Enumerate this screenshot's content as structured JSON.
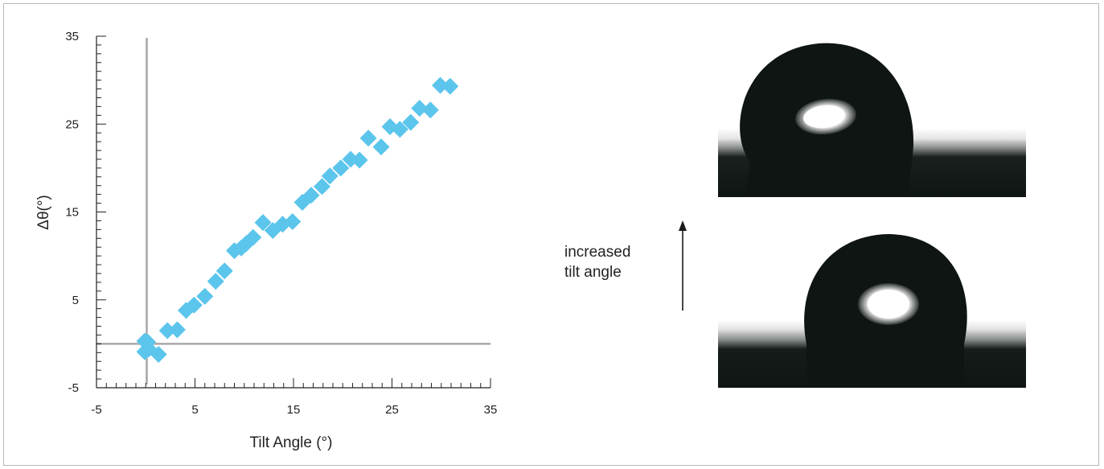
{
  "chart_data": {
    "type": "scatter",
    "title": "",
    "xlabel": "Tilt Angle (°)",
    "ylabel": "Δθ(°)",
    "xlim": [
      -5,
      35
    ],
    "ylim": [
      -5,
      35
    ],
    "xticks": [
      -5,
      5,
      15,
      25,
      35
    ],
    "yticks": [
      -5,
      5,
      15,
      25,
      35
    ],
    "x_tick_labels": [
      "-5",
      "5",
      "15",
      "25",
      "35"
    ],
    "y_tick_labels": [
      "-5",
      "5",
      "15",
      "25",
      "35"
    ],
    "grid": false,
    "legend": "none",
    "reference_lines": {
      "x": 0.1,
      "y": 0
    },
    "series": [
      {
        "marker": "diamond",
        "color": "#5bc5ec",
        "points": [
          [
            -0.1,
            0.3
          ],
          [
            0.2,
            0.2
          ],
          [
            -0.1,
            -0.9
          ],
          [
            0.3,
            -0.6
          ],
          [
            1.3,
            -1.2
          ],
          [
            2.2,
            1.5
          ],
          [
            3.2,
            1.6
          ],
          [
            4.1,
            3.8
          ],
          [
            4.9,
            4.4
          ],
          [
            6.0,
            5.4
          ],
          [
            7.1,
            7.1
          ],
          [
            8.0,
            8.3
          ],
          [
            9.0,
            10.6
          ],
          [
            9.7,
            10.9
          ],
          [
            10.2,
            11.4
          ],
          [
            10.9,
            12.1
          ],
          [
            11.9,
            13.8
          ],
          [
            12.9,
            12.9
          ],
          [
            13.9,
            13.6
          ],
          [
            14.9,
            13.9
          ],
          [
            15.9,
            16.1
          ],
          [
            16.8,
            16.9
          ],
          [
            17.9,
            17.9
          ],
          [
            18.7,
            19.1
          ],
          [
            19.8,
            20.0
          ],
          [
            20.8,
            21.0
          ],
          [
            21.7,
            20.9
          ],
          [
            22.6,
            23.4
          ],
          [
            23.9,
            22.4
          ],
          [
            24.8,
            24.7
          ],
          [
            25.8,
            24.4
          ],
          [
            26.9,
            25.2
          ],
          [
            27.8,
            26.8
          ],
          [
            28.9,
            26.6
          ],
          [
            29.9,
            29.4
          ],
          [
            30.9,
            29.3
          ]
        ]
      }
    ]
  },
  "annotation": {
    "line1": "increased",
    "line2": "tilt angle"
  },
  "photos": {
    "top_tilt": "high",
    "bottom_tilt": "low"
  },
  "colors": {
    "marker": "#5bc5ec",
    "axis": "#222222",
    "reference_line": "#a9a9a9",
    "photo_background": "#0e1513"
  }
}
